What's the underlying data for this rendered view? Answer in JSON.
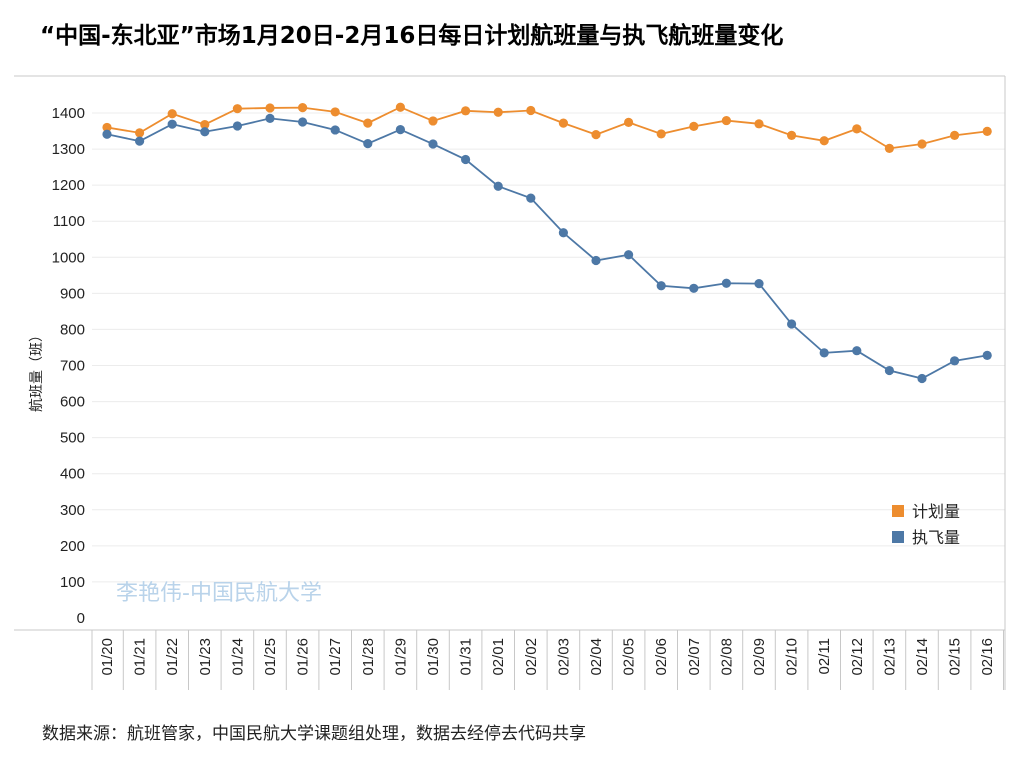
{
  "title": "“中国-东北亚”市场1月20日-2月16日每日计划航班量与执飞航班量变化",
  "source_note": "数据来源：航班管家，中国民航大学课题组处理，数据去经停去代码共享",
  "watermark": "李艳伟-中国民航大学",
  "colors": {
    "planned": "#ed8d2f",
    "actual": "#4d78a6",
    "grid": "#ececec",
    "axis": "#c8c8c8"
  },
  "chart_data": {
    "type": "line",
    "categories": [
      "01/20",
      "01/21",
      "01/22",
      "01/23",
      "01/24",
      "01/25",
      "01/26",
      "01/27",
      "01/28",
      "01/29",
      "01/30",
      "01/31",
      "02/01",
      "02/02",
      "02/03",
      "02/04",
      "02/05",
      "02/06",
      "02/07",
      "02/08",
      "02/09",
      "02/10",
      "02/11",
      "02/12",
      "02/13",
      "02/14",
      "02/15",
      "02/16"
    ],
    "series": [
      {
        "name": "计划量",
        "color": "#ed8d2f",
        "values": [
          1360,
          1345,
          1398,
          1368,
          1412,
          1414,
          1415,
          1403,
          1372,
          1416,
          1378,
          1406,
          1402,
          1407,
          1372,
          1340,
          1374,
          1342,
          1363,
          1379,
          1370,
          1338,
          1323,
          1356,
          1302,
          1314,
          1338,
          1349
        ]
      },
      {
        "name": "执飞量",
        "color": "#4d78a6",
        "values": [
          1341,
          1322,
          1369,
          1348,
          1364,
          1385,
          1375,
          1353,
          1315,
          1354,
          1314,
          1271,
          1197,
          1164,
          1068,
          991,
          1007,
          921,
          914,
          928,
          927,
          815,
          735,
          741,
          686,
          664,
          713,
          728
        ]
      }
    ],
    "title": "“中国-东北亚”市场1月20日-2月16日每日计划航班量与执飞航班量变化",
    "xlabel": "",
    "ylabel": "航班量（班）",
    "ylim": [
      0,
      1450
    ],
    "yticks": [
      0,
      100,
      200,
      300,
      400,
      500,
      600,
      700,
      800,
      900,
      1000,
      1100,
      1200,
      1300,
      1400
    ],
    "grid": "horizontal",
    "legend_position": "bottom-right"
  }
}
